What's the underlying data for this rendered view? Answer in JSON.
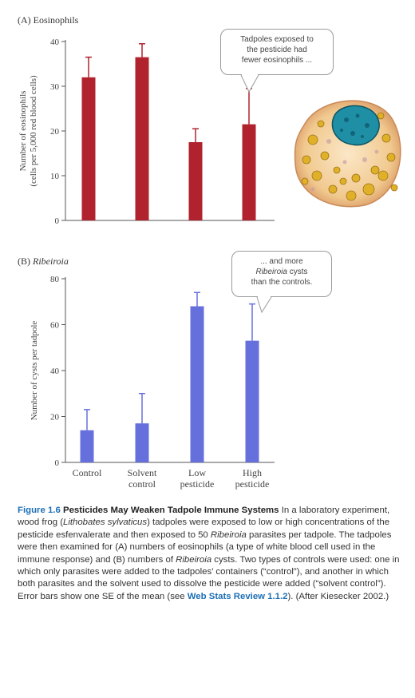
{
  "panel_a": {
    "label": "(A) Eosinophils",
    "callout": [
      "Tadpoles exposed to",
      "the pesticide had",
      "fewer eosinophils ..."
    ]
  },
  "panel_b": {
    "label_prefix": "(B) ",
    "label_italic": "Ribeiroia",
    "callout_line1": "... and more",
    "callout_line2_italic": "Ribeiroia",
    "callout_line2_rest": " cysts",
    "callout_line3": "than the controls."
  },
  "caption": {
    "fig_no": "Figure 1.6",
    "fig_title": "Pesticides May Weaken Tadpole Immune Systems",
    "t1": "In a laboratory experiment, wood frog (",
    "t1_italic": "Lithobates sylvaticus",
    "t2": ") tadpoles were exposed to low or high concentrations of the pesticide esfenvalerate and then exposed to 50 ",
    "t2_italic": "Ribeiroia",
    "t3": " parasites per tadpole. The tadpoles were then examined for (A) numbers of eosinophils (a type of white blood cell used in the immune response) and (B) numbers of ",
    "t3_italic": "Ribeiroia",
    "t4": " cysts. Two types of controls were used: one in which only parasites were added to the tadpoles’ containers (“control”), and another in which both parasites and the solvent used to dissolve the pesticide were added (“solvent control”). Error bars show one SE of the mean (see ",
    "link": "Web Stats Review 1.1.2",
    "t5": "). (After Kiesecker 2002.)"
  },
  "chart_data": [
    {
      "type": "bar",
      "title": "(A) Eosinophils",
      "ylabel_lines": [
        "Number of eosinophils",
        "(cells per 5,000 red blood cells)"
      ],
      "categories": [
        "Control",
        "Solvent control",
        "Low pesticide",
        "High pesticide"
      ],
      "values": [
        32,
        36.5,
        17.5,
        21.5
      ],
      "error": [
        4.5,
        3,
        3,
        8
      ],
      "ylim": [
        0,
        40
      ],
      "yticks": [
        0,
        10,
        20,
        30,
        40
      ],
      "color": "#b0232e",
      "grid": false
    },
    {
      "type": "bar",
      "title": "(B) Ribeiroia",
      "ylabel_lines": [
        "Number of cysts per tadpole"
      ],
      "categories": [
        "Control",
        "Solvent control",
        "Low pesticide",
        "High pesticide"
      ],
      "category_lines": [
        [
          "Control"
        ],
        [
          "Solvent",
          "control"
        ],
        [
          "Low",
          "pesticide"
        ],
        [
          "High",
          "pesticide"
        ]
      ],
      "values": [
        14,
        17,
        68,
        53
      ],
      "error": [
        9,
        13,
        6,
        16
      ],
      "ylim": [
        0,
        80
      ],
      "yticks": [
        0,
        20,
        40,
        60,
        80
      ],
      "color": "#6570dc",
      "grid": false
    }
  ]
}
